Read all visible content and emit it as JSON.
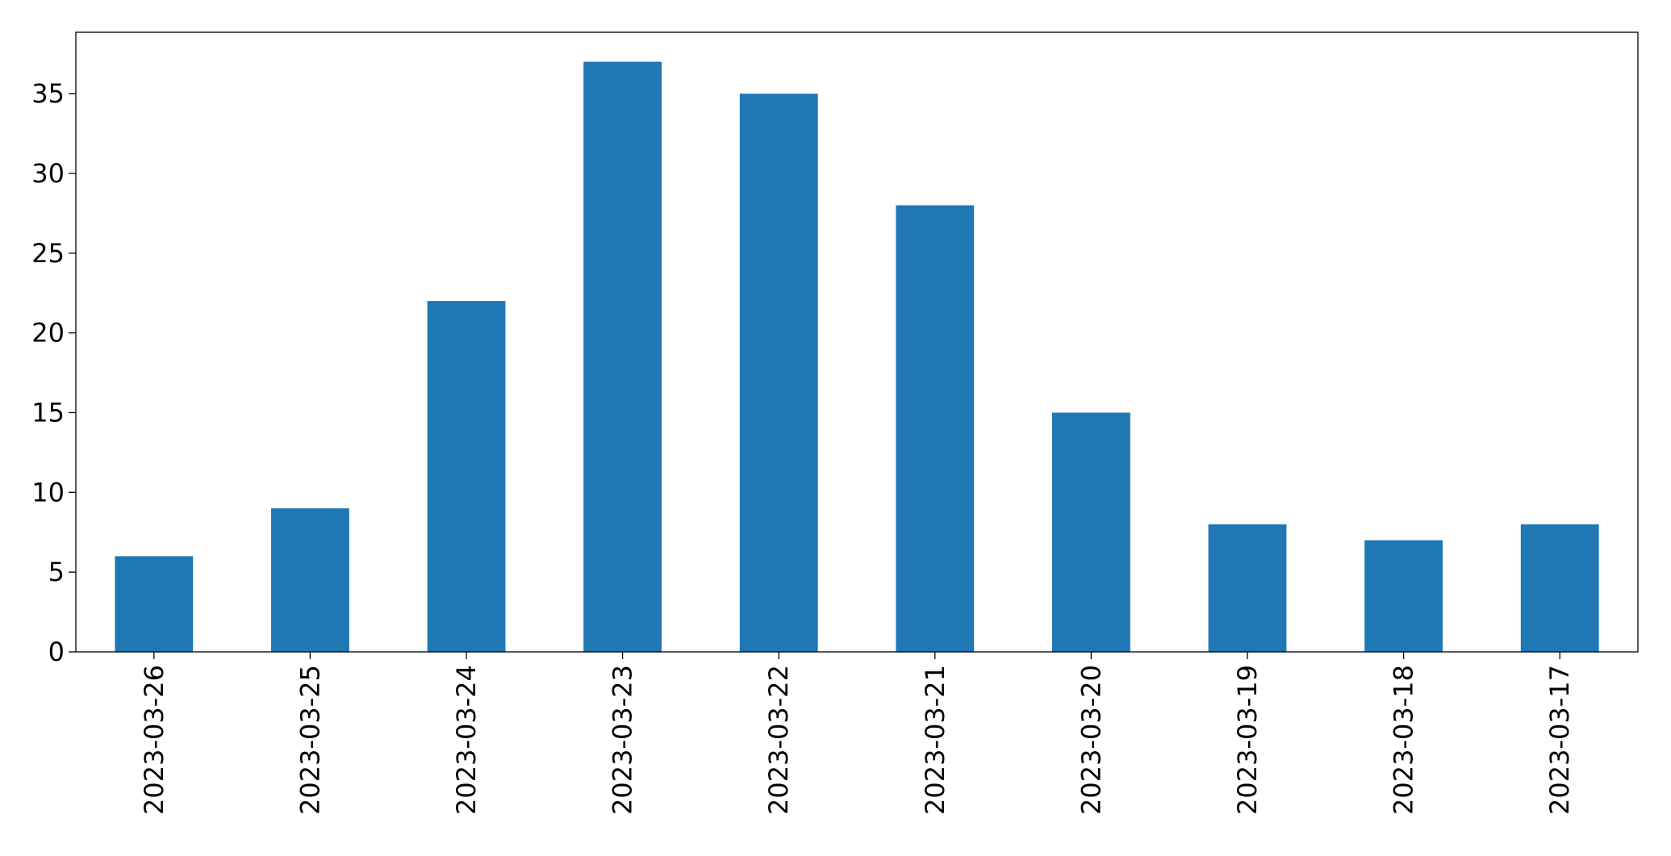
{
  "chart_data": {
    "type": "bar",
    "categories": [
      "2023-03-26",
      "2023-03-25",
      "2023-03-24",
      "2023-03-23",
      "2023-03-22",
      "2023-03-21",
      "2023-03-20",
      "2023-03-19",
      "2023-03-18",
      "2023-03-17"
    ],
    "values": [
      6,
      9,
      22,
      37,
      35,
      28,
      15,
      8,
      7,
      8
    ],
    "color": "#1f77b4",
    "ylim": [
      0,
      38.85
    ],
    "yticks": [
      0,
      5,
      10,
      15,
      20,
      25,
      30,
      35
    ],
    "grid": false
  }
}
